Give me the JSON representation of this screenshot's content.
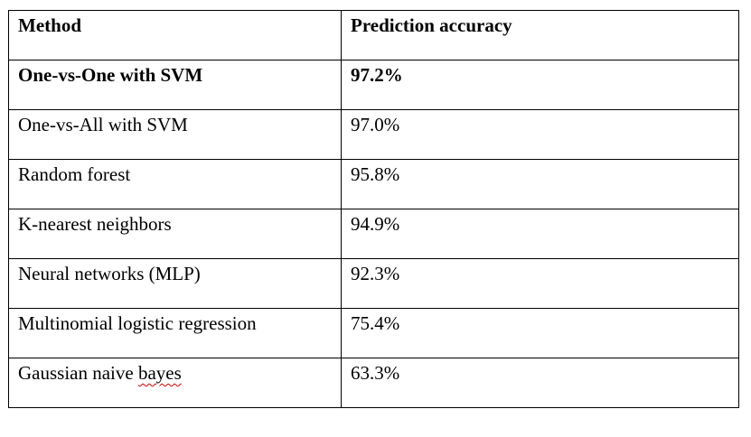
{
  "table": {
    "headers": [
      "Method",
      "Prediction accuracy"
    ],
    "rows": [
      {
        "method": "One-vs-One with SVM",
        "accuracy": "97.2%",
        "bold": true
      },
      {
        "method": "One-vs-All with SVM",
        "accuracy": "97.0%",
        "bold": false
      },
      {
        "method": "Random forest",
        "accuracy": "95.8%",
        "bold": false
      },
      {
        "method": "K-nearest neighbors",
        "accuracy": "94.9%",
        "bold": false
      },
      {
        "method": "Neural networks (MLP)",
        "accuracy": "92.3%",
        "bold": false
      },
      {
        "method": "Multinomial logistic regression",
        "accuracy": "75.4%",
        "bold": false
      },
      {
        "method_prefix": "Gaussian naive ",
        "method_misspelled": "bayes",
        "accuracy": "63.3%",
        "bold": false
      }
    ]
  }
}
